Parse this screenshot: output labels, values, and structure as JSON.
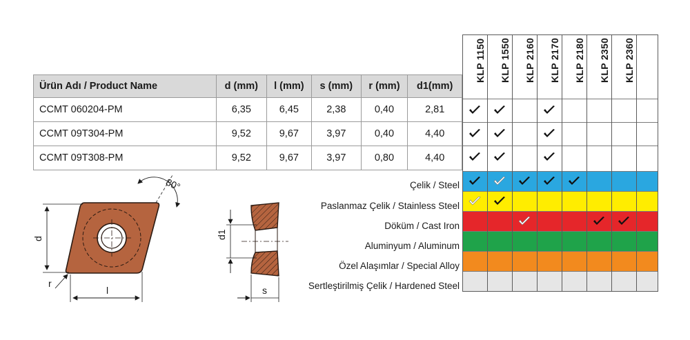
{
  "table": {
    "headers": [
      "Ürün Adı / Product Name",
      "d (mm)",
      "l (mm)",
      "s (mm)",
      "r (mm)",
      "d1(mm)"
    ],
    "rows": [
      [
        "CCMT 060204-PM",
        "6,35",
        "6,45",
        "2,38",
        "0,40",
        "2,81"
      ],
      [
        "CCMT 09T304-PM",
        "9,52",
        "9,67",
        "3,97",
        "0,40",
        "4,40"
      ],
      [
        "CCMT 09T308-PM",
        "9,52",
        "9,67",
        "3,97",
        "0,80",
        "4,40"
      ]
    ]
  },
  "grades": [
    "KLP 1150",
    "KLP 1550",
    "KLP 2160",
    "KLP 2170",
    "KLP 2180",
    "KLP 2350",
    "KLP 2360"
  ],
  "product_checks": [
    [
      true,
      true,
      false,
      true,
      false,
      false,
      false
    ],
    [
      true,
      true,
      false,
      true,
      false,
      false,
      false
    ],
    [
      true,
      true,
      false,
      true,
      false,
      false,
      false
    ]
  ],
  "materials": [
    {
      "label": "Çelik / Steel",
      "color": "#2aa7e0",
      "checks": [
        "primary",
        "secondary",
        "primary",
        "primary",
        "primary",
        "none",
        "none"
      ]
    },
    {
      "label": "Paslanmaz Çelik / Stainless Steel",
      "color": "#ffed00",
      "checks": [
        "secondary",
        "primary",
        "none",
        "none",
        "none",
        "none",
        "none"
      ]
    },
    {
      "label": "Döküm / Cast Iron",
      "color": "#e5262a",
      "checks": [
        "none",
        "none",
        "secondary",
        "none",
        "none",
        "primary",
        "primary"
      ]
    },
    {
      "label": "Aluminyum / Aluminum",
      "color": "#1fa34a",
      "checks": [
        "none",
        "none",
        "none",
        "none",
        "none",
        "none",
        "none"
      ]
    },
    {
      "label": "Özel Alaşımlar / Special Alloy",
      "color": "#f28a1e",
      "checks": [
        "none",
        "none",
        "none",
        "none",
        "none",
        "none",
        "none"
      ]
    },
    {
      "label": "Sertleştirilmiş Çelik / Hardened Steel",
      "color": "#e6e6e6",
      "checks": [
        "none",
        "none",
        "none",
        "none",
        "none",
        "none",
        "none"
      ]
    }
  ],
  "drawing": {
    "angle_label": "80°",
    "d_label": "d",
    "l_label": "l",
    "r_label": "r",
    "d1_label": "d1",
    "s_label": "s",
    "insert_color": "#b5643f"
  }
}
